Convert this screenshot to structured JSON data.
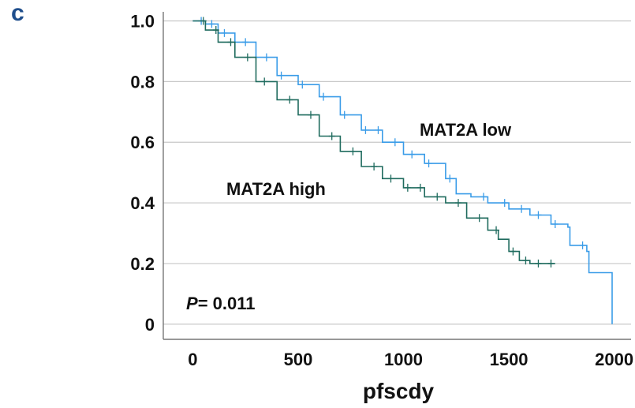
{
  "panel_label": "c",
  "colors": {
    "low": "#3a9ce8",
    "high": "#1f6b5e",
    "grid": "#c8c8c8",
    "axis": "#777777"
  },
  "chart_data": {
    "type": "line",
    "step": true,
    "title": "",
    "xlabel": "pfscdy",
    "ylabel": "",
    "xlim": [
      -140,
      2080
    ],
    "ylim": [
      -0.05,
      1.03
    ],
    "x_ticks": [
      0,
      500,
      1000,
      1500,
      2000
    ],
    "y_ticks": [
      0,
      0.2,
      0.4,
      0.6,
      0.8,
      1.0
    ],
    "x_tick_labels": [
      "0",
      "500",
      "1000",
      "1500",
      "2000"
    ],
    "y_tick_labels": [
      "0",
      "0.2",
      "0.4",
      "0.6",
      "0.8",
      "1.0"
    ],
    "grid": "horizontal",
    "annotation": {
      "p_symbol": "P",
      "p_text": "= 0.011"
    },
    "series": [
      {
        "name": "MAT2A low",
        "color": "#3a9ce8",
        "points": [
          [
            0,
            1.0
          ],
          [
            60,
            0.99
          ],
          [
            120,
            0.96
          ],
          [
            200,
            0.93
          ],
          [
            300,
            0.88
          ],
          [
            400,
            0.82
          ],
          [
            500,
            0.79
          ],
          [
            600,
            0.75
          ],
          [
            700,
            0.69
          ],
          [
            800,
            0.64
          ],
          [
            900,
            0.6
          ],
          [
            1000,
            0.56
          ],
          [
            1100,
            0.53
          ],
          [
            1200,
            0.48
          ],
          [
            1250,
            0.43
          ],
          [
            1320,
            0.42
          ],
          [
            1400,
            0.4
          ],
          [
            1500,
            0.38
          ],
          [
            1600,
            0.36
          ],
          [
            1700,
            0.33
          ],
          [
            1780,
            0.32
          ],
          [
            1790,
            0.26
          ],
          [
            1870,
            0.24
          ],
          [
            1880,
            0.17
          ],
          [
            1990,
            0.17
          ],
          [
            1990,
            0.0
          ]
        ],
        "censor_x": [
          40,
          90,
          150,
          250,
          350,
          420,
          520,
          620,
          720,
          820,
          880,
          960,
          1040,
          1120,
          1220,
          1380,
          1480,
          1560,
          1640,
          1720,
          1850
        ]
      },
      {
        "name": "MAT2A high",
        "color": "#1f6b5e",
        "points": [
          [
            0,
            1.0
          ],
          [
            60,
            0.97
          ],
          [
            120,
            0.93
          ],
          [
            200,
            0.88
          ],
          [
            300,
            0.8
          ],
          [
            400,
            0.74
          ],
          [
            500,
            0.69
          ],
          [
            600,
            0.62
          ],
          [
            700,
            0.57
          ],
          [
            800,
            0.52
          ],
          [
            900,
            0.48
          ],
          [
            1000,
            0.45
          ],
          [
            1100,
            0.42
          ],
          [
            1200,
            0.4
          ],
          [
            1300,
            0.35
          ],
          [
            1400,
            0.31
          ],
          [
            1450,
            0.28
          ],
          [
            1500,
            0.24
          ],
          [
            1550,
            0.21
          ],
          [
            1600,
            0.2
          ],
          [
            1720,
            0.2
          ]
        ],
        "censor_x": [
          50,
          110,
          180,
          260,
          340,
          460,
          560,
          660,
          760,
          860,
          940,
          1020,
          1080,
          1160,
          1260,
          1360,
          1440,
          1520,
          1580,
          1640,
          1700
        ]
      }
    ],
    "series_labels_text": [
      "MAT2A low",
      "MAT2A high"
    ]
  }
}
